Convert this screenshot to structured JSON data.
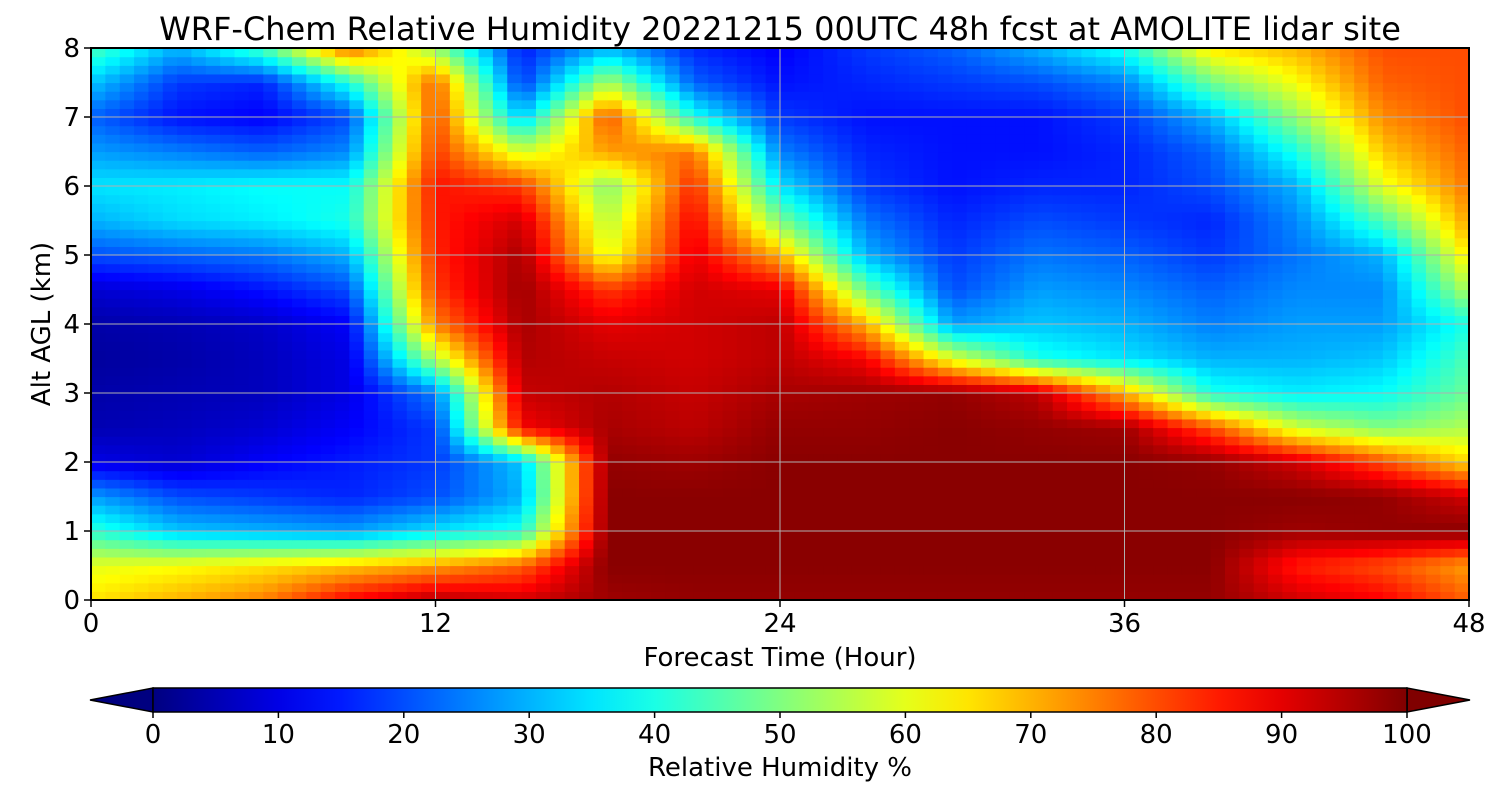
{
  "chart_data": {
    "type": "heatmap",
    "title": "WRF-Chem Relative Humidity 20221215 00UTC 48h fcst at AMOLITE lidar site",
    "xlabel": "Forecast Time (Hour)",
    "ylabel": "Alt AGL (km)",
    "xlim": [
      0,
      48
    ],
    "ylim": [
      0,
      8
    ],
    "x_ticks": [
      "0",
      "12",
      "24",
      "36",
      "48"
    ],
    "y_ticks": [
      "0",
      "1",
      "2",
      "3",
      "4",
      "5",
      "6",
      "7",
      "8"
    ],
    "grid": true,
    "colormap": "jet",
    "colorbar": {
      "label": "Relative Humidity %",
      "range": [
        0,
        100
      ],
      "ticks": [
        "0",
        "10",
        "20",
        "30",
        "40",
        "50",
        "60",
        "70",
        "80",
        "90",
        "100"
      ],
      "extend": "both",
      "orientation": "horizontal"
    },
    "x": [
      0,
      3,
      6,
      9,
      12,
      15,
      18,
      21,
      24,
      27,
      30,
      33,
      36,
      39,
      42,
      45,
      48
    ],
    "y": [
      0,
      0.5,
      1,
      1.5,
      2,
      2.5,
      3,
      3.5,
      4,
      4.5,
      5,
      5.5,
      6,
      6.5,
      7,
      7.5,
      8
    ],
    "z": [
      [
        65,
        70,
        75,
        88,
        95,
        92,
        97,
        98,
        98,
        98,
        98,
        98,
        98,
        98,
        92,
        88,
        78
      ],
      [
        60,
        62,
        65,
        68,
        72,
        78,
        99,
        99,
        99,
        99,
        99,
        99,
        99,
        99,
        85,
        80,
        72
      ],
      [
        42,
        32,
        30,
        28,
        35,
        40,
        99,
        99,
        99,
        99,
        99,
        99,
        99,
        99,
        97,
        98,
        99
      ],
      [
        28,
        20,
        18,
        16,
        20,
        30,
        99,
        99,
        99,
        99,
        99,
        99,
        99,
        99,
        99,
        98,
        92
      ],
      [
        10,
        8,
        12,
        15,
        18,
        32,
        98,
        97,
        99,
        99,
        99,
        99,
        99,
        98,
        92,
        80,
        66
      ],
      [
        5,
        6,
        8,
        12,
        18,
        88,
        96,
        94,
        98,
        98,
        99,
        98,
        97,
        80,
        58,
        50,
        55
      ],
      [
        4,
        5,
        6,
        10,
        25,
        93,
        95,
        93,
        96,
        97,
        98,
        94,
        70,
        40,
        36,
        38,
        48
      ],
      [
        3,
        4,
        6,
        10,
        55,
        95,
        93,
        92,
        94,
        88,
        60,
        40,
        35,
        30,
        30,
        32,
        45
      ],
      [
        4,
        5,
        7,
        12,
        75,
        96,
        90,
        92,
        94,
        70,
        28,
        32,
        30,
        25,
        28,
        28,
        40
      ],
      [
        8,
        10,
        14,
        20,
        82,
        97,
        82,
        92,
        90,
        48,
        20,
        28,
        26,
        22,
        26,
        26,
        55
      ],
      [
        20,
        22,
        24,
        30,
        84,
        96,
        60,
        90,
        70,
        30,
        18,
        24,
        22,
        18,
        24,
        30,
        65
      ],
      [
        30,
        34,
        36,
        40,
        85,
        92,
        55,
        88,
        50,
        24,
        16,
        20,
        18,
        16,
        26,
        45,
        72
      ],
      [
        35,
        36,
        38,
        38,
        86,
        82,
        50,
        84,
        35,
        18,
        14,
        16,
        16,
        20,
        30,
        60,
        76
      ],
      [
        28,
        25,
        22,
        26,
        82,
        58,
        72,
        76,
        25,
        16,
        14,
        14,
        16,
        22,
        40,
        68,
        78
      ],
      [
        22,
        14,
        12,
        20,
        80,
        32,
        80,
        40,
        18,
        14,
        14,
        14,
        18,
        30,
        52,
        74,
        80
      ],
      [
        32,
        18,
        16,
        40,
        78,
        18,
        55,
        22,
        14,
        16,
        18,
        20,
        25,
        48,
        62,
        78,
        80
      ],
      [
        45,
        30,
        45,
        78,
        52,
        15,
        30,
        16,
        12,
        18,
        22,
        30,
        40,
        65,
        70,
        80,
        80
      ]
    ]
  }
}
